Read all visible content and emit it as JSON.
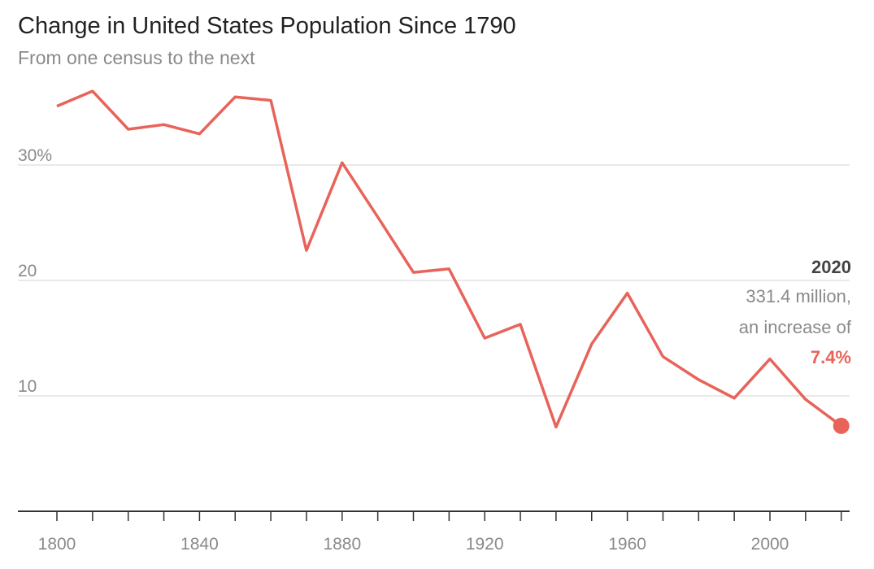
{
  "chart_data": {
    "type": "line",
    "title": "Change in United States Population Since 1790",
    "subtitle": "From one census to the next",
    "xlabel": "",
    "ylabel": "",
    "xlim": [
      1800,
      2020
    ],
    "ylim": [
      0,
      37
    ],
    "grid": true,
    "x_ticks": [
      1800,
      1840,
      1880,
      1920,
      1960,
      2000
    ],
    "x_tick_labels": [
      "1800",
      "1840",
      "1880",
      "1920",
      "1960",
      "2000"
    ],
    "y_ticks": [
      10,
      20,
      30
    ],
    "y_tick_labels": [
      "10",
      "20",
      "30%"
    ],
    "x": [
      1800,
      1810,
      1820,
      1830,
      1840,
      1850,
      1860,
      1870,
      1880,
      1890,
      1900,
      1910,
      1920,
      1930,
      1940,
      1950,
      1960,
      1970,
      1980,
      1990,
      2000,
      2010,
      2020
    ],
    "series": [
      {
        "values": [
          35.1,
          36.4,
          33.1,
          33.5,
          32.7,
          35.9,
          35.6,
          22.6,
          30.2,
          25.5,
          20.7,
          21.0,
          15.0,
          16.2,
          7.3,
          14.5,
          18.9,
          13.4,
          11.4,
          9.8,
          13.2,
          9.7,
          7.4
        ]
      }
    ],
    "annotation": {
      "year": "2020",
      "line1": "331.4 million,",
      "line2": "an increase of",
      "value": "7.4%"
    },
    "colors": {
      "line": "#e8635a",
      "grid": "#e2e2e2",
      "axis": "#333333",
      "text": "#8a8a8a",
      "annotation_year": "#444444"
    }
  }
}
